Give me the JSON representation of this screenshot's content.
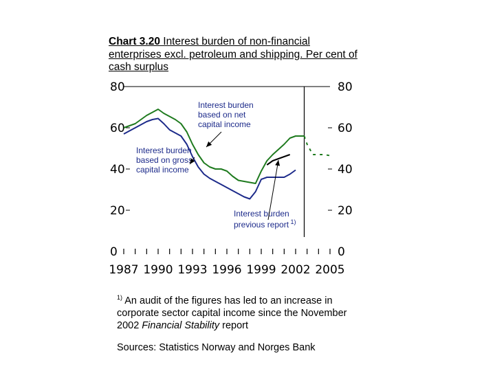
{
  "title": {
    "lead": "Chart 3.20",
    "text": " Interest burden of non-financial enterprises excl. petroleum and shipping. Per cent of cash surplus"
  },
  "chart_data": {
    "type": "line",
    "xlim": [
      1987,
      2005
    ],
    "ylim": [
      0,
      80
    ],
    "x_ticks": [
      "1987",
      "1990",
      "1993",
      "1996",
      "1999",
      "2002",
      "2005"
    ],
    "y_ticks_left": [
      "80",
      "60",
      "40",
      "20",
      "0"
    ],
    "y_ticks_right": [
      "80",
      "60",
      "40",
      "20",
      "0"
    ],
    "vertical_marker_x": 2002.75,
    "series": [
      {
        "label_key": "net",
        "color": "#1e7a1e",
        "x": [
          1987.0,
          1987.5,
          1988.0,
          1988.5,
          1989.0,
          1989.5,
          1990.0,
          1990.5,
          1991.0,
          1991.5,
          1992.0,
          1992.5,
          1993.0,
          1993.5,
          1994.0,
          1994.5,
          1995.0,
          1995.5,
          1996.0,
          1996.5,
          1997.0,
          1997.5,
          1998.0,
          1998.5,
          1999.0,
          1999.5,
          2000.0,
          2000.5,
          2001.0,
          2001.5,
          2002.0,
          2002.5,
          2002.75
        ],
        "y": [
          60,
          61,
          62,
          64,
          66,
          67.5,
          69,
          67,
          65.5,
          64,
          62,
          58,
          52,
          47,
          43,
          41,
          40,
          40,
          39,
          36.5,
          34.5,
          34,
          33.5,
          33,
          39,
          44,
          47,
          49.5,
          52,
          55,
          56,
          56,
          56
        ],
        "dashed_x": [
          2003.0,
          2003.5,
          2004.0,
          2004.5,
          2005.0
        ],
        "dashed_y": [
          52,
          47,
          47,
          47,
          46.5
        ]
      },
      {
        "label_key": "gross",
        "color": "#1c2a8a",
        "x": [
          1987.0,
          1987.5,
          1988.0,
          1988.5,
          1989.0,
          1989.5,
          1990.0,
          1990.5,
          1991.0,
          1991.5,
          1992.0,
          1992.5,
          1993.0,
          1993.5,
          1994.0,
          1994.5,
          1995.0,
          1995.5,
          1996.0,
          1996.5,
          1997.0,
          1997.5,
          1998.0,
          1998.5,
          1999.0,
          1999.5,
          2000.0,
          2000.5,
          2001.0,
          2001.5,
          2002.0
        ],
        "y": [
          57,
          58.5,
          60,
          61.5,
          63,
          64,
          64.5,
          62,
          59,
          57.5,
          56,
          52,
          46,
          41,
          37.5,
          35.5,
          34,
          32.5,
          31,
          29.5,
          28,
          26.5,
          25.5,
          29,
          35,
          36,
          36,
          36,
          36,
          37.5,
          39.5
        ]
      },
      {
        "label_key": "previous",
        "color": "#000000",
        "x": [
          1999.5,
          2000.0,
          2000.5,
          2001.0,
          2001.5
        ],
        "y": [
          42,
          44,
          45,
          46,
          47
        ]
      }
    ]
  },
  "annotations": {
    "net": [
      "Interest burden",
      "based on net",
      "capital income"
    ],
    "gross": [
      "Interest burden",
      "based on gross",
      "capital income"
    ],
    "previous": [
      "Interest burden",
      "previous report"
    ],
    "previous_sup": "1)"
  },
  "footnote": {
    "marker": "1)",
    "text_a": " An audit of the figures has led to an increase in corporate sector capital income since the November 2002 ",
    "text_italic": "Financial Stability",
    "text_b": " report"
  },
  "sources": "Sources: Statistics Norway and Norges Bank"
}
